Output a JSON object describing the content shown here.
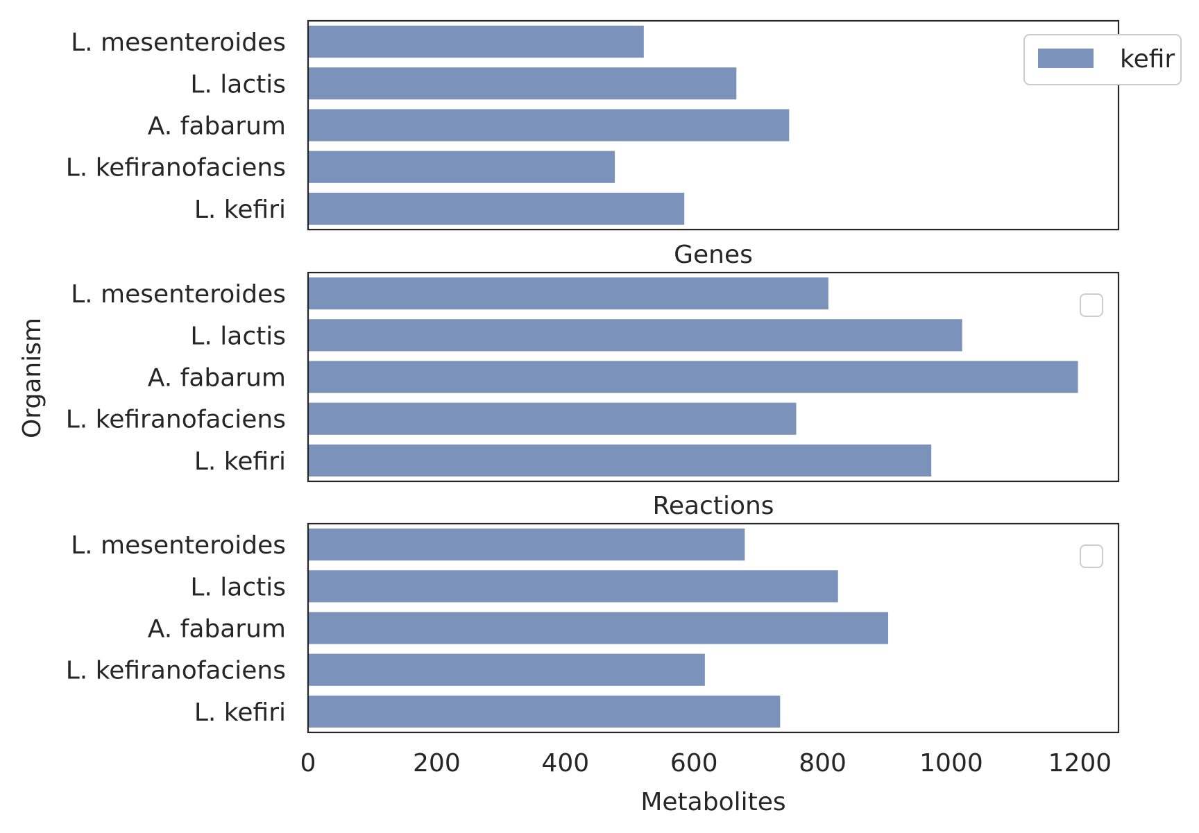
{
  "chart_data": {
    "type": "bar",
    "orientation": "horizontal",
    "categories": [
      "L. mesenteroides",
      "L. lactis",
      "A. fabarum",
      "L. kefiranofaciens",
      "L. kefiri"
    ],
    "ylabel": "Organism",
    "xlabel": "Metabolites",
    "xlim": [
      0,
      1260
    ],
    "xticks": [
      0,
      200,
      400,
      600,
      800,
      1000,
      1200
    ],
    "bar_color": "#7b92bb",
    "grid": false,
    "legend": {
      "placement": "top-right",
      "entries": [
        "kefir"
      ]
    },
    "panels": [
      {
        "title": "",
        "series": [
          {
            "name": "kefir",
            "values": [
              523,
              667,
              749,
              478,
              586
            ]
          }
        ],
        "show_legend_entries": true
      },
      {
        "title": "Genes",
        "series": [
          {
            "values": [
              810,
              1018,
              1198,
              760,
              970
            ]
          }
        ],
        "show_legend_entries": false
      },
      {
        "title": "Reactions",
        "series": [
          {
            "values": [
              680,
              825,
              903,
              618,
              735
            ]
          }
        ],
        "show_legend_entries": false
      }
    ]
  }
}
